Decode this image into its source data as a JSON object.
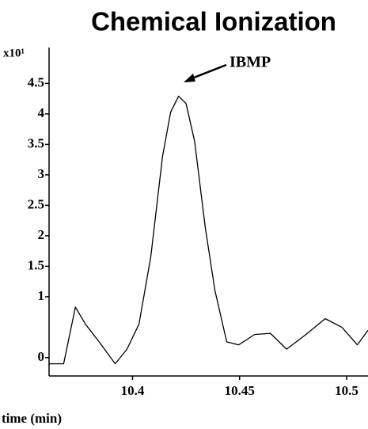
{
  "chart_data": {
    "type": "line",
    "title": "Chemical Ionization",
    "y_label": "x10¹",
    "x_label": "time (min)",
    "annotation": "IBMP",
    "x": [
      10.361,
      10.3678,
      10.3733,
      10.378,
      10.3844,
      10.3919,
      10.3974,
      10.403,
      10.4085,
      10.414,
      10.4178,
      10.4215,
      10.425,
      10.429,
      10.434,
      10.4385,
      10.444,
      10.4496,
      10.457,
      10.4644,
      10.472,
      10.481,
      10.49,
      10.4978,
      10.505,
      10.51
    ],
    "series": [
      {
        "color": "#000000",
        "values": [
          -0.1,
          -0.1,
          0.83,
          0.55,
          0.26,
          -0.1,
          0.14,
          0.55,
          1.65,
          3.3,
          4.03,
          4.29,
          4.17,
          3.55,
          2.13,
          1.1,
          0.26,
          0.21,
          0.38,
          0.4,
          0.14,
          0.38,
          0.64,
          0.5,
          0.21,
          0.45
        ]
      }
    ],
    "xlim": [
      10.361,
      10.51
    ],
    "xticks": [
      10.4,
      10.45,
      10.5
    ],
    "ylim": [
      -0.3,
      4.7
    ],
    "yticks": [
      0,
      1,
      1.5,
      2,
      2.5,
      3,
      3.5,
      4,
      4.5
    ]
  }
}
